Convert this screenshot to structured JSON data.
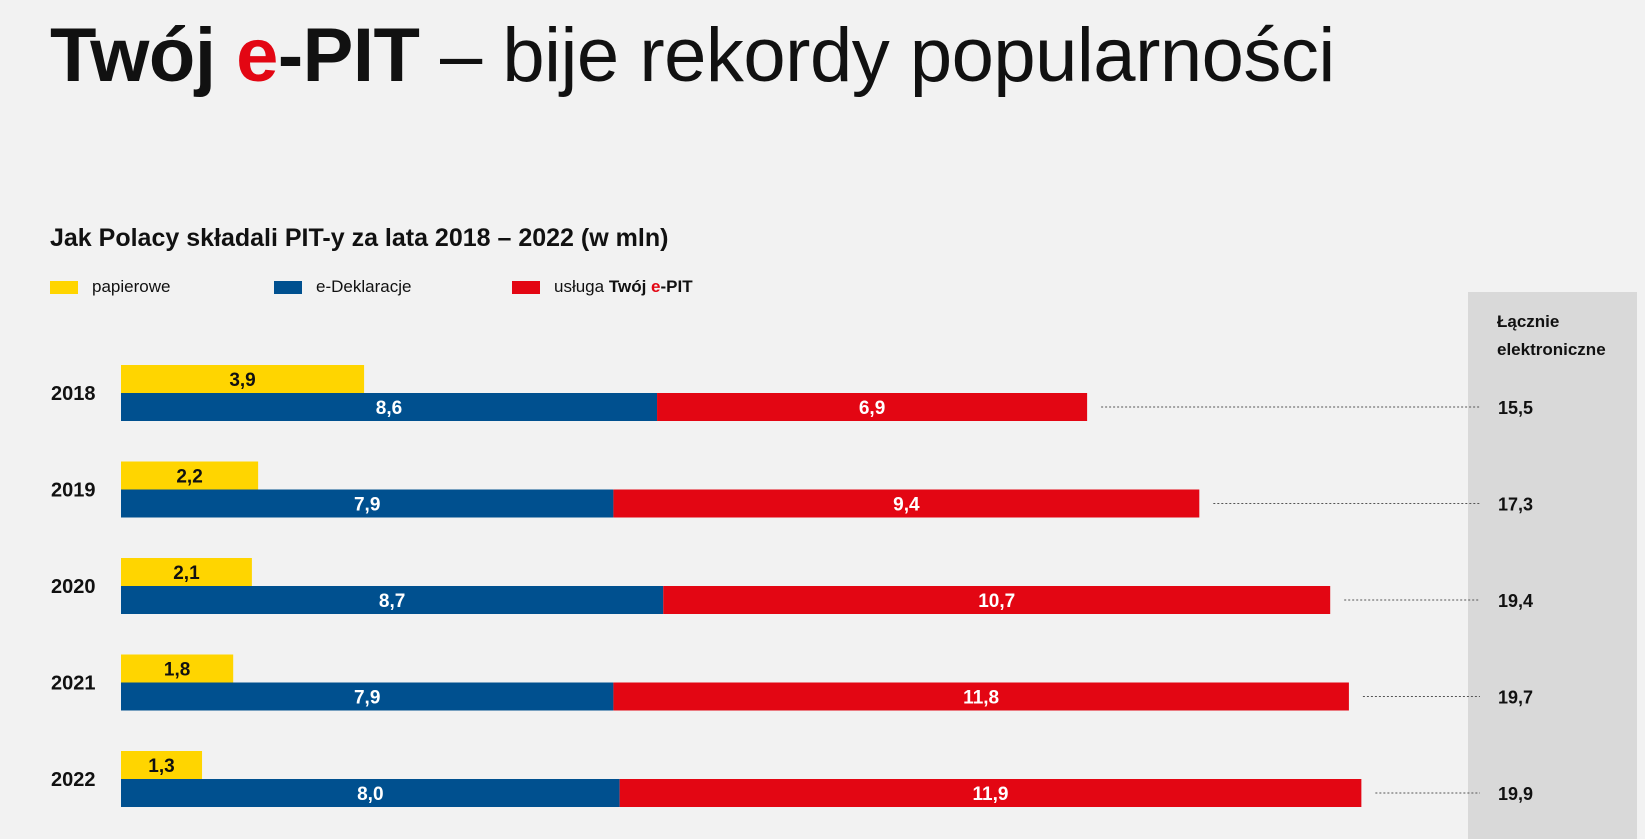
{
  "title": {
    "part1": "Twój",
    "part2_accent": "e",
    "part3": "-PIT",
    "part4": "– bije rekordy popularności"
  },
  "colors": {
    "yellow": "#ffd500",
    "blue": "#00508f",
    "red": "#e30613",
    "panel": "#d9d9d9",
    "background": "#f2f2f2"
  },
  "chart_data": {
    "type": "bar",
    "title": "Jak Polacy składali PIT-y za lata 2018 – 2022",
    "title_suffix": "(w mln)",
    "categories": [
      "2018",
      "2019",
      "2020",
      "2021",
      "2022"
    ],
    "series": [
      {
        "name": "papierowe",
        "values": [
          3.9,
          2.2,
          2.1,
          1.8,
          1.3
        ],
        "labels": [
          "3,9",
          "2,2",
          "2,1",
          "1,8",
          "1,3"
        ],
        "color": "#ffd500"
      },
      {
        "name": "e-Deklaracje",
        "values": [
          8.6,
          7.9,
          8.7,
          7.9,
          8.0
        ],
        "labels": [
          "8,6",
          "7,9",
          "8,7",
          "7,9",
          "8,0"
        ],
        "color": "#00508f"
      },
      {
        "name": "usługa Twój e-PIT",
        "values": [
          6.9,
          9.4,
          10.7,
          11.8,
          11.9
        ],
        "labels": [
          "6,9",
          "9,4",
          "10,7",
          "11,8",
          "11,9"
        ],
        "color": "#e30613"
      }
    ],
    "totals": {
      "label_line1": "Łącznie",
      "label_line2": "elektroniczne",
      "values": [
        15.5,
        17.3,
        19.4,
        19.7,
        19.9
      ],
      "labels": [
        "15,5",
        "17,3",
        "19,4",
        "19,7",
        "19,9"
      ]
    },
    "legend": {
      "paper": "papierowe",
      "edeklaracje": "e-Deklaracje",
      "epit_prefix": "usługa",
      "epit_bold1": "Twój",
      "epit_accent": "e",
      "epit_bold2": "-PIT"
    },
    "xlim": [
      0,
      20.6
    ]
  }
}
